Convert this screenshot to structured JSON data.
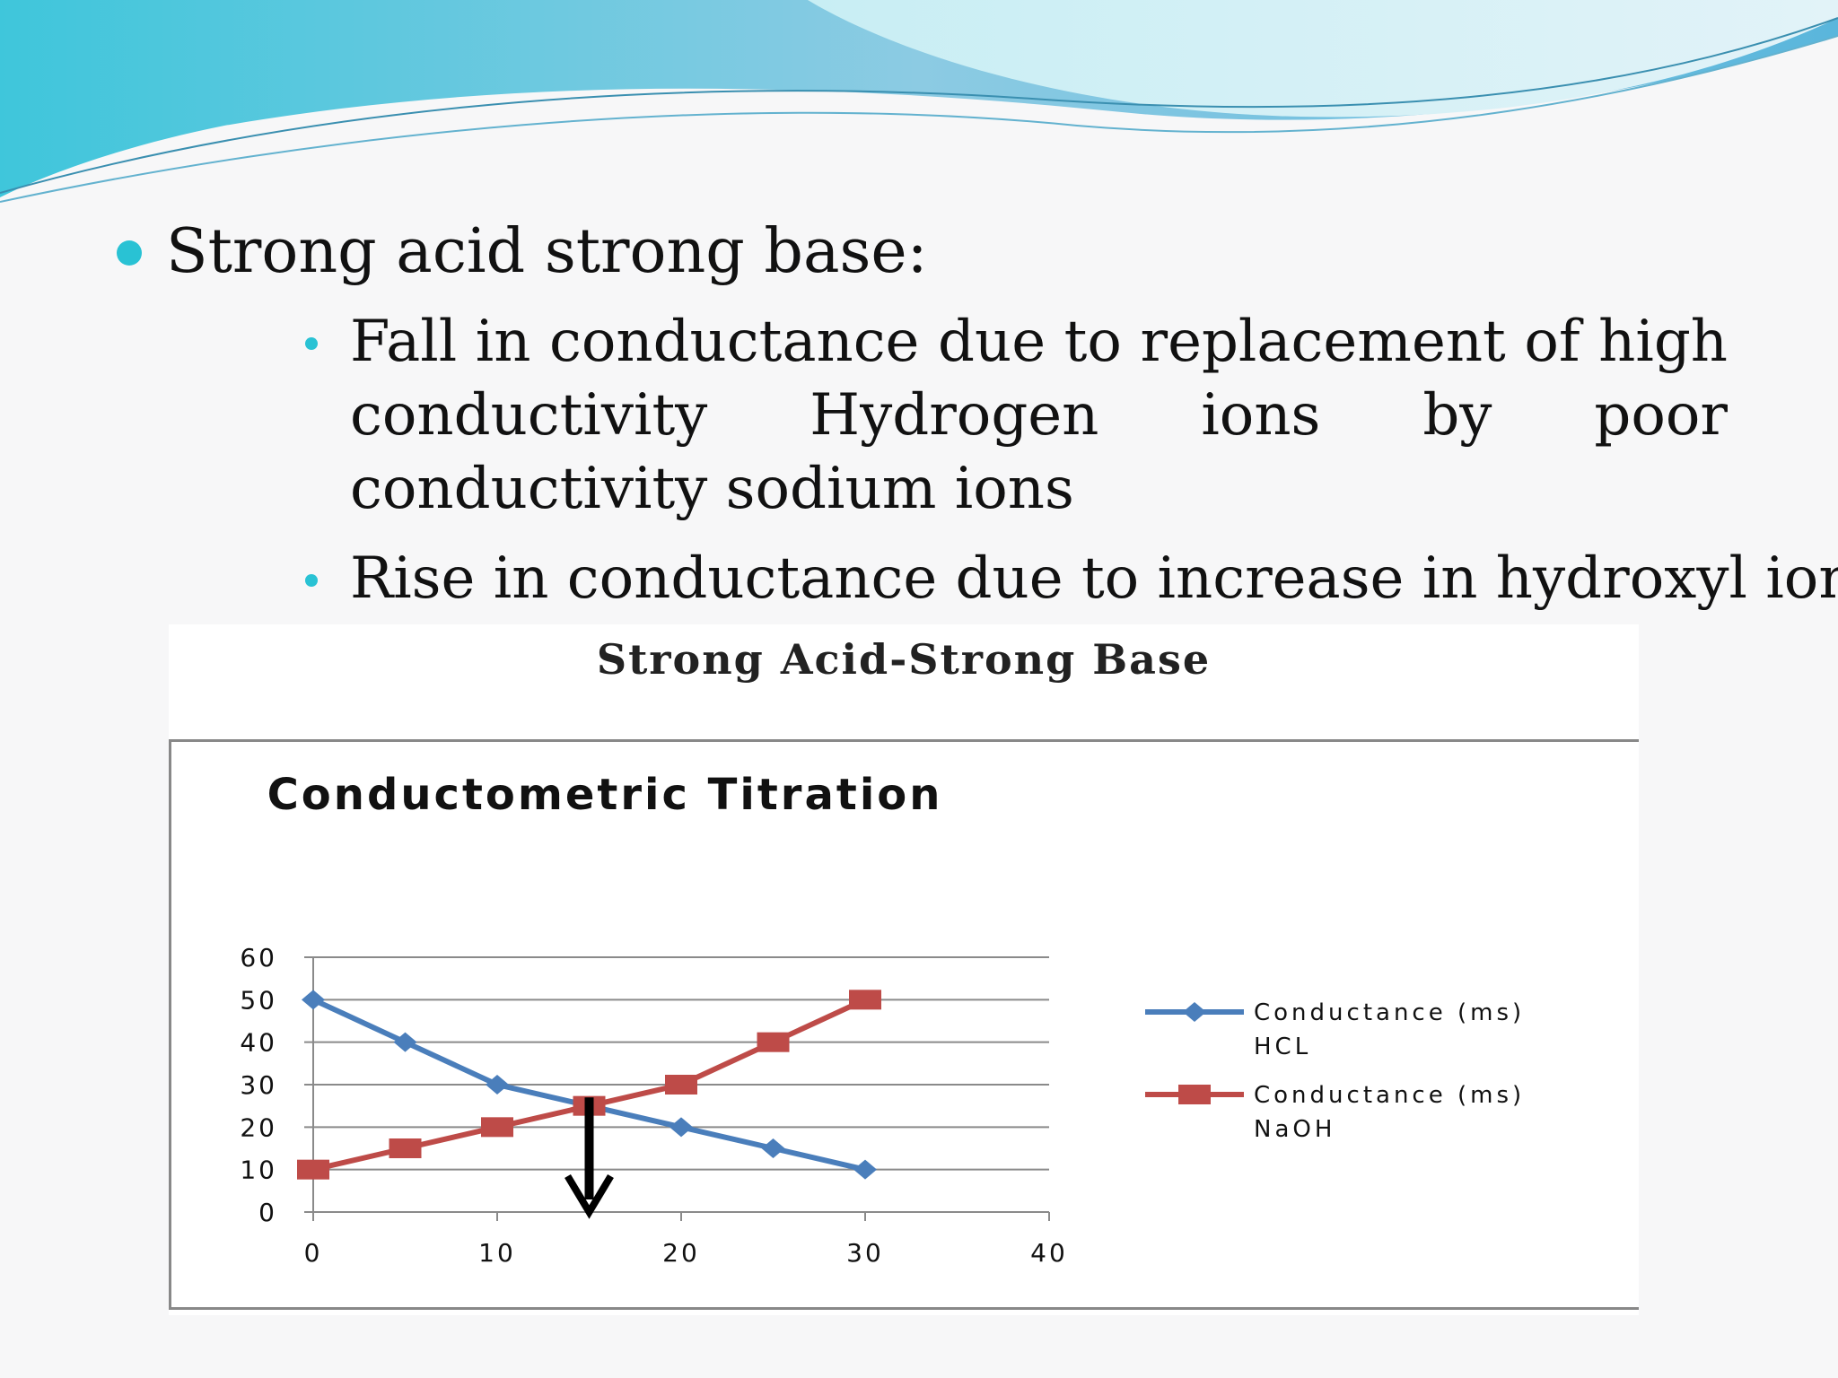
{
  "slide": {
    "heading": "Strong acid strong base:",
    "points": [
      "Fall in conductance due to replacement of  high conductivity Hydrogen ions by poor conductivity sodium ions",
      "Rise in conductance due to increase in hydroxyl ions"
    ],
    "accent_color": "#29c2d4"
  },
  "chart_caption": "Strong Acid-Strong Base",
  "chart_data": {
    "type": "line",
    "title": "Conductometric Titration",
    "xlim": [
      0,
      40
    ],
    "ylim": [
      0,
      60
    ],
    "x_ticks": [
      "0",
      "10",
      "20",
      "30",
      "40"
    ],
    "y_ticks": [
      "0",
      "10",
      "20",
      "30",
      "40",
      "50",
      "60"
    ],
    "grid": true,
    "legend_position": "right",
    "series": [
      {
        "name_line1": "Conductance (ms)",
        "name_line2": "HCL",
        "color": "#4a7ebb",
        "marker": "diamond",
        "x": [
          0,
          5,
          10,
          15,
          20,
          25,
          30
        ],
        "y": [
          50,
          40,
          30,
          25,
          20,
          15,
          10
        ]
      },
      {
        "name_line1": "Conductance (ms)",
        "name_line2": "NaOH",
        "color": "#be4b48",
        "marker": "square",
        "x": [
          0,
          5,
          10,
          15,
          20,
          25,
          30
        ],
        "y": [
          10,
          15,
          20,
          25,
          30,
          40,
          50
        ]
      }
    ],
    "annotation": {
      "type": "arrow-down",
      "x": 15,
      "y_from": 27,
      "y_to": 0
    }
  }
}
